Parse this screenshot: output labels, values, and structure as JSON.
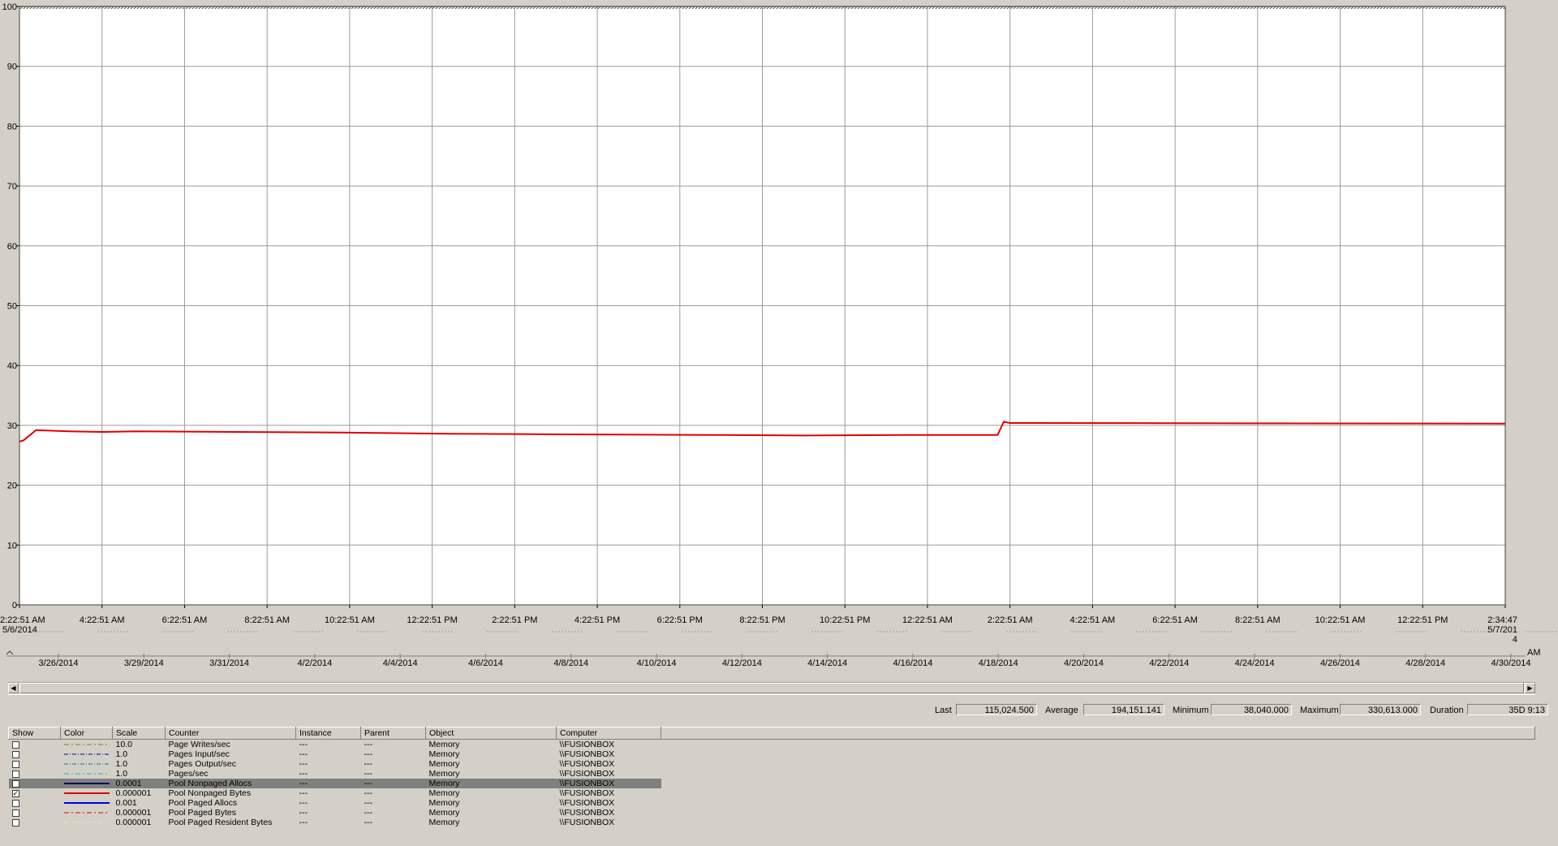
{
  "chart_data": {
    "type": "line",
    "ylim": [
      0,
      100
    ],
    "y_ticks": [
      "0",
      "10",
      "20",
      "30",
      "40",
      "50",
      "60",
      "70",
      "80",
      "90",
      "100"
    ],
    "grid": true,
    "x_tick_labels": [
      [
        "2:22:51 AM",
        "5/6/2014"
      ],
      [
        "4:22:51 AM"
      ],
      [
        "6:22:51 AM"
      ],
      [
        "8:22:51 AM"
      ],
      [
        "10:22:51 AM"
      ],
      [
        "12:22:51 PM"
      ],
      [
        "2:22:51 PM"
      ],
      [
        "4:22:51 PM"
      ],
      [
        "6:22:51 PM"
      ],
      [
        "8:22:51 PM"
      ],
      [
        "10:22:51 PM"
      ],
      [
        "12:22:51 AM"
      ],
      [
        "2:22:51 AM"
      ],
      [
        "4:22:51 AM"
      ],
      [
        "6:22:51 AM"
      ],
      [
        "8:22:51 AM"
      ],
      [
        "10:22:51 AM"
      ],
      [
        "12:22:51 PM"
      ],
      [
        "2:34:47",
        "5/7/201",
        "4"
      ]
    ],
    "series": [
      {
        "name": "Pool Nonpaged Bytes",
        "color": "#e00000",
        "x_hours": [
          0,
          0.1,
          0.4,
          1.2,
          2.0,
          2.8,
          5.2,
          7.8,
          10.4,
          13.1,
          16.7,
          19.0,
          21.5,
          23.7,
          23.85,
          24.0,
          36.0
        ],
        "values": [
          27.3,
          27.5,
          29.2,
          29.0,
          28.9,
          29.0,
          28.9,
          28.8,
          28.6,
          28.5,
          28.4,
          28.3,
          28.4,
          28.4,
          30.6,
          30.4,
          30.3
        ]
      }
    ]
  },
  "timeline": {
    "date_labels": [
      "3/26/2014",
      "3/29/2014",
      "3/31/2014",
      "4/2/2014",
      "4/4/2014",
      "4/6/2014",
      "4/8/2014",
      "4/10/2014",
      "4/12/2014",
      "4/14/2014",
      "4/16/2014",
      "4/18/2014",
      "4/20/2014",
      "4/22/2014",
      "4/24/2014",
      "4/26/2014",
      "4/28/2014",
      "4/30/2014"
    ],
    "am_label": "AM"
  },
  "stats": {
    "last_label": "Last",
    "last_value": "115,024.500",
    "average_label": "Average",
    "average_value": "194,151.141",
    "minimum_label": "Minimum",
    "minimum_value": "38,040.000",
    "maximum_label": "Maximum",
    "maximum_value": "330,613.000",
    "duration_label": "Duration",
    "duration_value": "35D 9:13"
  },
  "legend": {
    "headers": [
      "Show",
      "Color",
      "Scale",
      "Counter",
      "Instance",
      "Parent",
      "Object",
      "Computer"
    ],
    "rows": [
      {
        "checked": false,
        "color": "#808000",
        "dash": "6,3,2,3",
        "scale": "10.0",
        "counter": "Page Writes/sec",
        "instance": "---",
        "parent": "---",
        "object": "Memory",
        "computer": "\\\\FUSIONBOX"
      },
      {
        "checked": false,
        "color": "#000080",
        "dash": "5,2,1,2",
        "scale": "1.0",
        "counter": "Pages Input/sec",
        "instance": "---",
        "parent": "---",
        "object": "Memory",
        "computer": "\\\\FUSIONBOX"
      },
      {
        "checked": false,
        "color": "#008080",
        "dash": "5,2,1,2",
        "scale": "1.0",
        "counter": "Pages Output/sec",
        "instance": "---",
        "parent": "---",
        "object": "Memory",
        "computer": "\\\\FUSIONBOX"
      },
      {
        "checked": false,
        "color": "#00c0c0",
        "dash": "6,3,2,3",
        "scale": "1.0",
        "counter": "Pages/sec",
        "instance": "---",
        "parent": "---",
        "object": "Memory",
        "computer": "\\\\FUSIONBOX"
      },
      {
        "checked": false,
        "color": "#000060",
        "dash": "",
        "scale": "0.0001",
        "counter": "Pool Nonpaged Allocs",
        "instance": "---",
        "parent": "---",
        "object": "Memory",
        "computer": "\\\\FUSIONBOX",
        "selected": true
      },
      {
        "checked": true,
        "color": "#e00000",
        "dash": "",
        "scale": "0.000001",
        "counter": "Pool Nonpaged Bytes",
        "instance": "---",
        "parent": "---",
        "object": "Memory",
        "computer": "\\\\FUSIONBOX"
      },
      {
        "checked": false,
        "color": "#0000e0",
        "dash": "",
        "scale": "0.001",
        "counter": "Pool Paged Allocs",
        "instance": "---",
        "parent": "---",
        "object": "Memory",
        "computer": "\\\\FUSIONBOX"
      },
      {
        "checked": false,
        "color": "#e00000",
        "dash": "6,3,2,3",
        "scale": "0.000001",
        "counter": "Pool Paged Bytes",
        "instance": "---",
        "parent": "---",
        "object": "Memory",
        "computer": "\\\\FUSIONBOX"
      },
      {
        "checked": false,
        "color": "#e8e0c8",
        "dash": "6,3,2,3",
        "scale": "0.000001",
        "counter": "Pool Paged Resident Bytes",
        "instance": "---",
        "parent": "---",
        "object": "Memory",
        "computer": "\\\\FUSIONBOX"
      }
    ]
  }
}
